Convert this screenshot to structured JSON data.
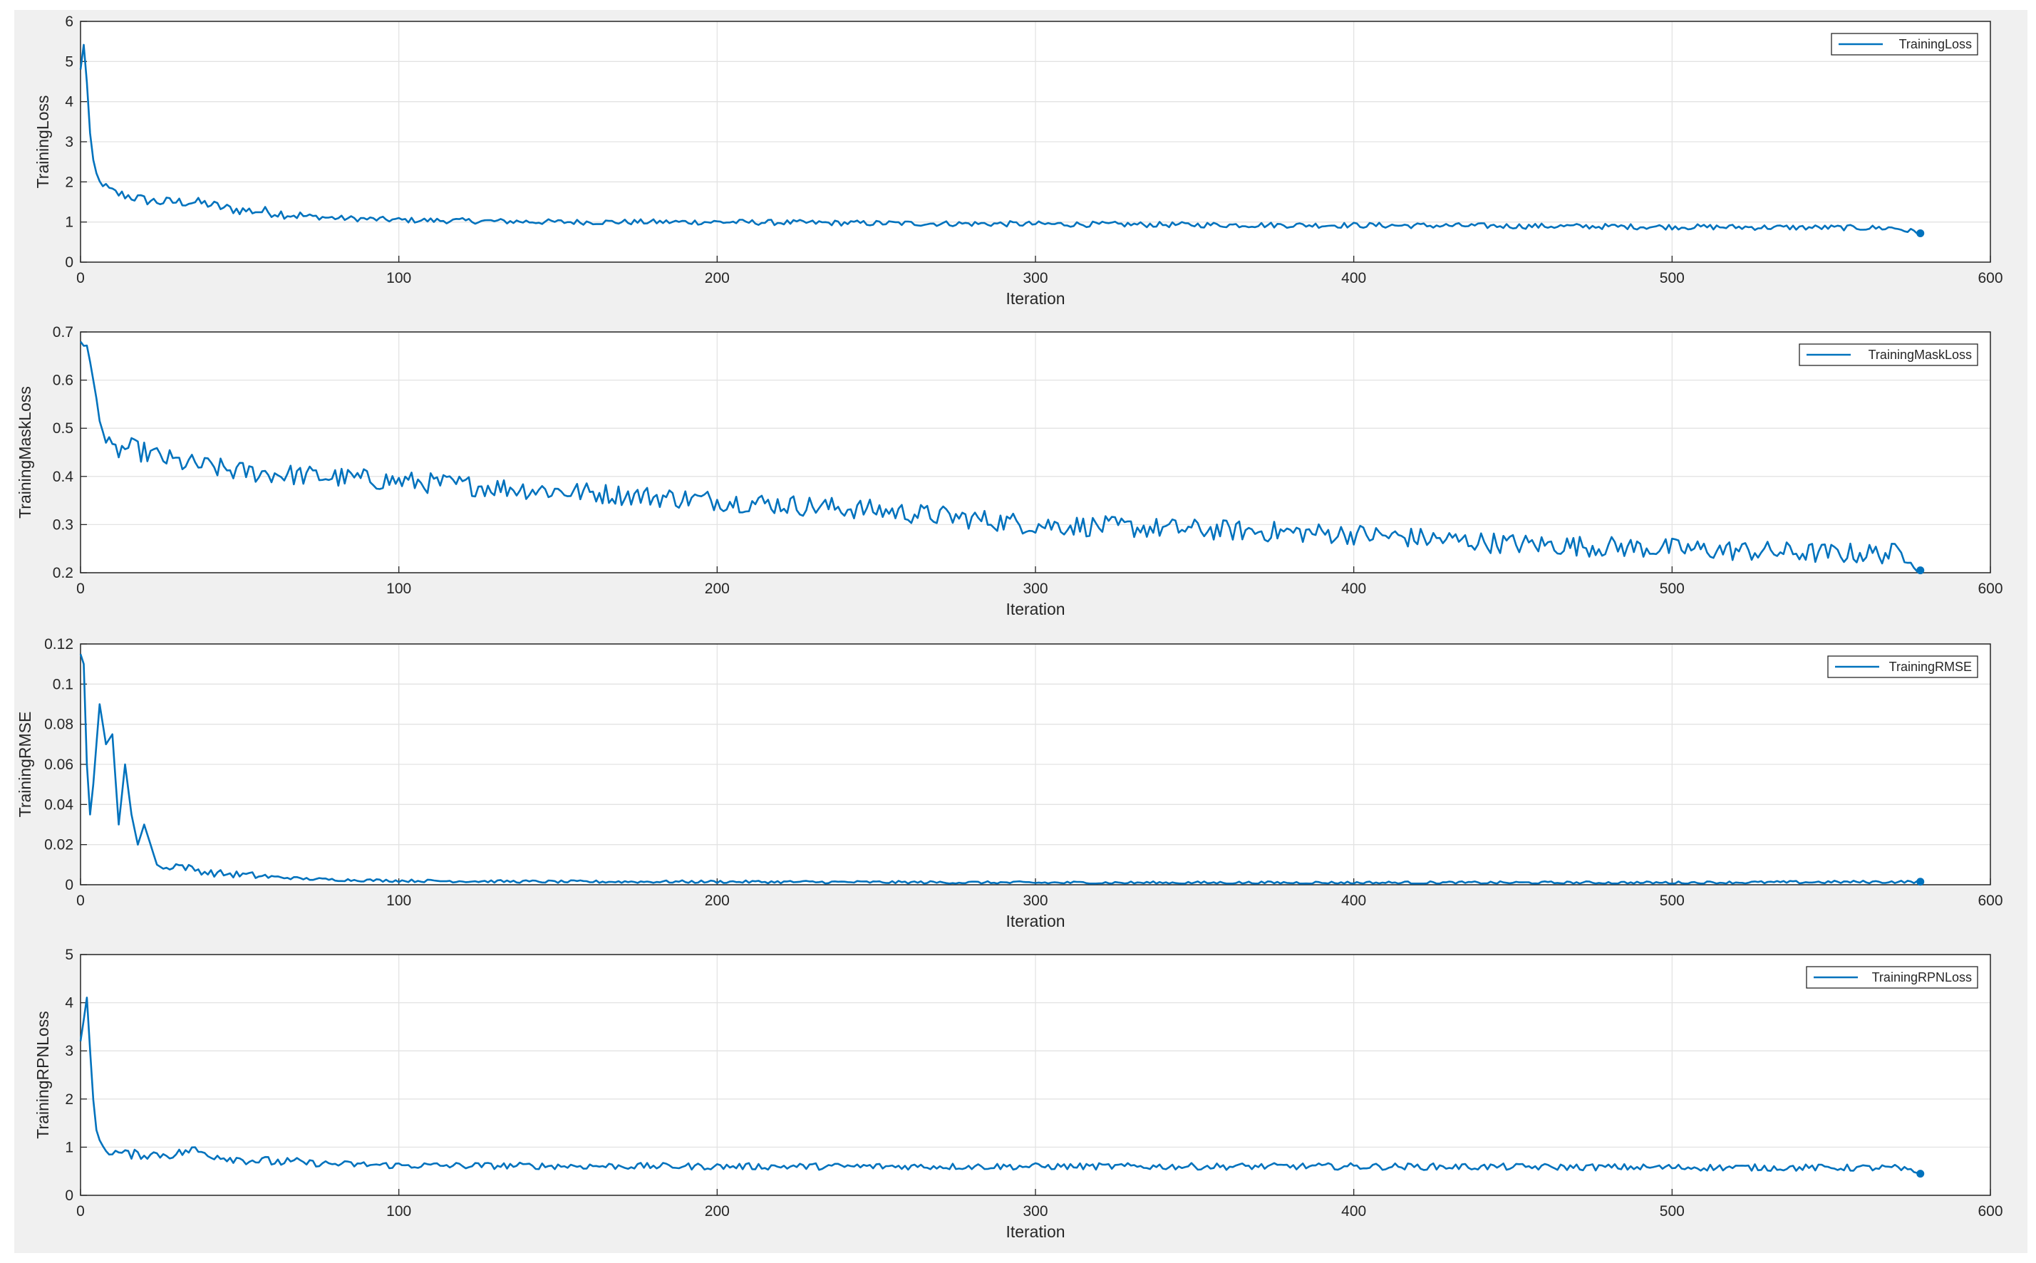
{
  "chart_data": [
    {
      "type": "line",
      "ylabel": "TrainingLoss",
      "xlabel": "Iteration",
      "legend": "TrainingLoss",
      "legend_position": "top-right",
      "grid": true,
      "xlim": [
        0,
        600
      ],
      "ylim": [
        0,
        6
      ],
      "xticks": [
        "0",
        "100",
        "200",
        "300",
        "400",
        "500",
        "600"
      ],
      "yticks": [
        "0",
        "1",
        "2",
        "3",
        "4",
        "5",
        "6"
      ],
      "color": "#0072bd",
      "x": [
        0,
        1,
        2,
        3,
        4,
        5,
        6,
        8,
        10,
        12,
        15,
        20,
        25,
        30,
        35,
        40,
        45,
        50,
        60,
        70,
        80,
        100,
        150,
        200,
        250,
        300,
        350,
        400,
        450,
        500,
        550,
        570,
        578
      ],
      "y": [
        4.8,
        5.4,
        4.5,
        3.2,
        2.5,
        2.2,
        2.0,
        1.85,
        1.75,
        1.7,
        1.65,
        1.55,
        1.5,
        1.5,
        1.5,
        1.45,
        1.35,
        1.3,
        1.25,
        1.15,
        1.1,
        1.05,
        1.0,
        1.0,
        0.97,
        0.95,
        0.93,
        0.92,
        0.9,
        0.88,
        0.86,
        0.85,
        0.72
      ]
    },
    {
      "type": "line",
      "ylabel": "TrainingMaskLoss",
      "xlabel": "Iteration",
      "legend": "TrainingMaskLoss",
      "legend_position": "top-right",
      "grid": true,
      "xlim": [
        0,
        600
      ],
      "ylim": [
        0.2,
        0.7
      ],
      "xticks": [
        "0",
        "100",
        "200",
        "300",
        "400",
        "500",
        "600"
      ],
      "yticks": [
        "0.2",
        "0.3",
        "0.4",
        "0.5",
        "0.6",
        "0.7"
      ],
      "color": "#0072bd",
      "x": [
        0,
        2,
        4,
        6,
        8,
        10,
        15,
        20,
        30,
        50,
        100,
        150,
        200,
        250,
        300,
        350,
        400,
        450,
        500,
        550,
        575,
        578
      ],
      "y": [
        0.68,
        0.67,
        0.6,
        0.52,
        0.47,
        0.45,
        0.46,
        0.45,
        0.43,
        0.41,
        0.39,
        0.37,
        0.35,
        0.33,
        0.3,
        0.29,
        0.28,
        0.26,
        0.25,
        0.24,
        0.24,
        0.205
      ]
    },
    {
      "type": "line",
      "ylabel": "TrainingRMSE",
      "xlabel": "Iteration",
      "legend": "TrainingRMSE",
      "legend_position": "top-right",
      "grid": true,
      "xlim": [
        0,
        600
      ],
      "ylim": [
        0,
        0.12
      ],
      "xticks": [
        "0",
        "100",
        "200",
        "300",
        "400",
        "500",
        "600"
      ],
      "yticks": [
        "0",
        "0.02",
        "0.04",
        "0.06",
        "0.08",
        "0.1",
        "0.12"
      ],
      "color": "#0072bd",
      "x": [
        0,
        1,
        2,
        3,
        4,
        6,
        8,
        10,
        12,
        14,
        16,
        18,
        20,
        22,
        24,
        26,
        30,
        35,
        40,
        50,
        60,
        70,
        80,
        100,
        150,
        200,
        300,
        400,
        500,
        578
      ],
      "y": [
        0.115,
        0.11,
        0.06,
        0.035,
        0.05,
        0.09,
        0.07,
        0.075,
        0.03,
        0.06,
        0.035,
        0.02,
        0.03,
        0.02,
        0.01,
        0.008,
        0.01,
        0.008,
        0.006,
        0.005,
        0.004,
        0.003,
        0.0025,
        0.002,
        0.0015,
        0.0015,
        0.001,
        0.001,
        0.001,
        0.0015
      ]
    },
    {
      "type": "line",
      "ylabel": "TrainingRPNLoss",
      "xlabel": "Iteration",
      "legend": "TrainingRPNLoss",
      "legend_position": "top-right",
      "grid": true,
      "xlim": [
        0,
        600
      ],
      "ylim": [
        0,
        5
      ],
      "xticks": [
        "0",
        "100",
        "200",
        "300",
        "400",
        "500",
        "600"
      ],
      "yticks": [
        "0",
        "1",
        "2",
        "3",
        "4",
        "5"
      ],
      "color": "#0072bd",
      "x": [
        0,
        1,
        2,
        3,
        4,
        5,
        6,
        8,
        10,
        15,
        20,
        30,
        35,
        40,
        50,
        60,
        80,
        100,
        200,
        300,
        400,
        500,
        570,
        578
      ],
      "y": [
        3.2,
        3.6,
        4.1,
        3.0,
        2.0,
        1.4,
        1.1,
        0.95,
        0.9,
        0.85,
        0.85,
        0.85,
        0.95,
        0.85,
        0.75,
        0.7,
        0.65,
        0.62,
        0.6,
        0.6,
        0.6,
        0.58,
        0.57,
        0.45
      ]
    }
  ]
}
